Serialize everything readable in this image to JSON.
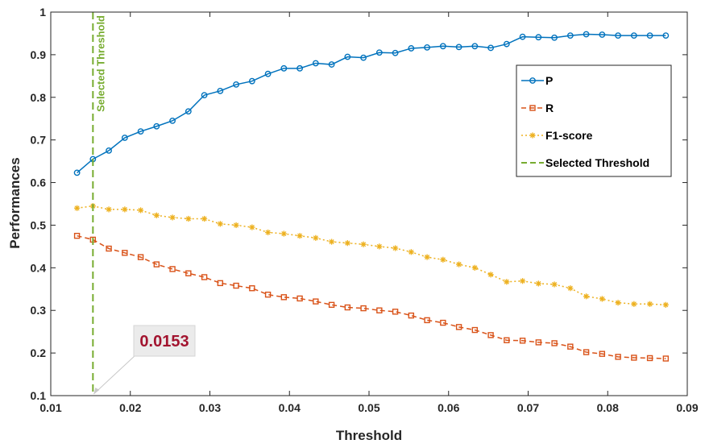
{
  "chart_data": {
    "type": "line",
    "xlabel": "Threshold",
    "ylabel": "Performances",
    "xlim": [
      0.01,
      0.09
    ],
    "ylim": [
      0.1,
      1.0
    ],
    "xticks": [
      "0.01",
      "0.02",
      "0.03",
      "0.04",
      "0.05",
      "0.06",
      "0.07",
      "0.08",
      "0.09"
    ],
    "yticks": [
      "0.1",
      "0.2",
      "0.3",
      "0.4",
      "0.5",
      "0.6",
      "0.7",
      "0.8",
      "0.9",
      "1"
    ],
    "grid": false,
    "legend_position": "upper-right",
    "x": [
      0.0133,
      0.0153,
      0.0173,
      0.0193,
      0.0213,
      0.0233,
      0.0253,
      0.0273,
      0.0293,
      0.0313,
      0.0333,
      0.0353,
      0.0373,
      0.0393,
      0.0413,
      0.0433,
      0.0453,
      0.0473,
      0.0493,
      0.0513,
      0.0533,
      0.0553,
      0.0573,
      0.0593,
      0.0613,
      0.0633,
      0.0653,
      0.0673,
      0.0693,
      0.0713,
      0.0733,
      0.0753,
      0.0773,
      0.0793,
      0.0813,
      0.0833,
      0.0853,
      0.0873
    ],
    "series": [
      {
        "name": "P",
        "color": "#0072BD",
        "marker": "circle",
        "line_style": "solid",
        "values": [
          0.623,
          0.655,
          0.675,
          0.705,
          0.72,
          0.732,
          0.745,
          0.767,
          0.805,
          0.815,
          0.83,
          0.838,
          0.855,
          0.868,
          0.868,
          0.88,
          0.877,
          0.895,
          0.893,
          0.905,
          0.904,
          0.915,
          0.917,
          0.92,
          0.918,
          0.92,
          0.916,
          0.925,
          0.942,
          0.941,
          0.94,
          0.945,
          0.948,
          0.947,
          0.945,
          0.945,
          0.945,
          0.945
        ]
      },
      {
        "name": "R",
        "color": "#D95319",
        "marker": "square",
        "line_style": "dashed",
        "values": [
          0.475,
          0.466,
          0.445,
          0.435,
          0.425,
          0.408,
          0.397,
          0.387,
          0.378,
          0.364,
          0.358,
          0.352,
          0.337,
          0.331,
          0.328,
          0.321,
          0.313,
          0.307,
          0.305,
          0.3,
          0.297,
          0.288,
          0.277,
          0.271,
          0.261,
          0.254,
          0.242,
          0.23,
          0.229,
          0.225,
          0.223,
          0.215,
          0.202,
          0.198,
          0.191,
          0.189,
          0.188,
          0.187
        ]
      },
      {
        "name": "F1-score",
        "color": "#EDB120",
        "marker": "asterisk",
        "line_style": "dotted",
        "values": [
          0.54,
          0.545,
          0.537,
          0.537,
          0.535,
          0.523,
          0.518,
          0.515,
          0.515,
          0.503,
          0.5,
          0.495,
          0.483,
          0.48,
          0.475,
          0.47,
          0.461,
          0.458,
          0.455,
          0.45,
          0.446,
          0.437,
          0.425,
          0.419,
          0.408,
          0.4,
          0.384,
          0.367,
          0.369,
          0.363,
          0.361,
          0.352,
          0.333,
          0.327,
          0.318,
          0.315,
          0.315,
          0.313
        ]
      }
    ],
    "selected_threshold": {
      "name": "Selected Threshold",
      "x": 0.0153,
      "color": "#77AC30",
      "line_style": "dashed",
      "vertical_label": "Selected Threshold"
    },
    "annotation": {
      "text": "0.0153",
      "color": "#A2142F",
      "box_color": "#EBEBEB",
      "points_to_x": 0.0153,
      "points_to_y": 0.1
    }
  }
}
